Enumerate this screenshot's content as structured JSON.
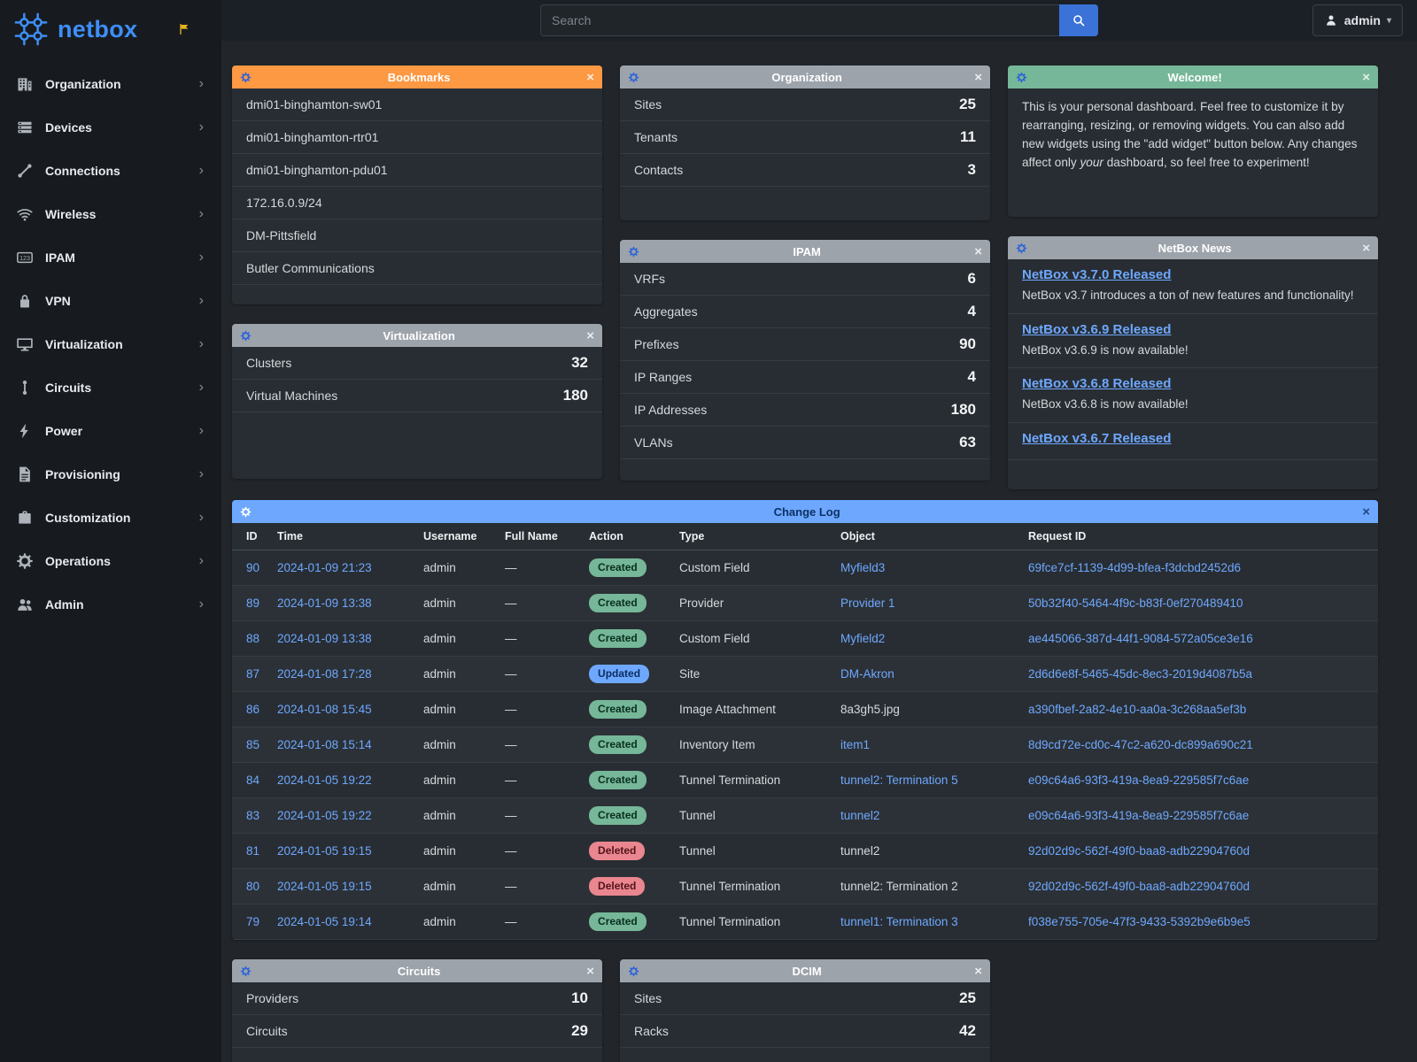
{
  "brand": {
    "name": "netbox"
  },
  "topbar": {
    "search_placeholder": "Search",
    "user_label": "admin"
  },
  "glyphs": {
    "close": "×",
    "chevron": "›",
    "caret": "▾"
  },
  "colors": {
    "link": "#6ea8fe",
    "sidebar_bg": "#171b1f",
    "topbar_bg": "#1b2026",
    "page_bg": "#22262b",
    "card_bg": "#282d33",
    "brand_blue": "#3e8ef7",
    "search_button": "#3a72d8",
    "pin_yellow": "#e8b51e"
  },
  "badges": {
    "Created": {
      "bg": "#75b798",
      "text": "#0a2e1f"
    },
    "Updated": {
      "bg": "#6ea8fe",
      "text": "#0a2e63"
    },
    "Deleted": {
      "bg": "#ea868f",
      "text": "#53141b"
    }
  },
  "sidebar": {
    "items": [
      {
        "label": "Organization",
        "icon": "organization-icon"
      },
      {
        "label": "Devices",
        "icon": "devices-icon"
      },
      {
        "label": "Connections",
        "icon": "connections-icon"
      },
      {
        "label": "Wireless",
        "icon": "wireless-icon"
      },
      {
        "label": "IPAM",
        "icon": "ipam-icon"
      },
      {
        "label": "VPN",
        "icon": "vpn-icon"
      },
      {
        "label": "Virtualization",
        "icon": "virtualization-icon"
      },
      {
        "label": "Circuits",
        "icon": "circuits-icon"
      },
      {
        "label": "Power",
        "icon": "power-icon"
      },
      {
        "label": "Provisioning",
        "icon": "provisioning-icon"
      },
      {
        "label": "Customization",
        "icon": "customization-icon"
      },
      {
        "label": "Operations",
        "icon": "operations-icon"
      },
      {
        "label": "Admin",
        "icon": "admin-icon"
      }
    ]
  },
  "widgets": {
    "bookmarks": {
      "title": "Bookmarks",
      "header_bg": "#fd9843",
      "header_text": "#ffffff",
      "gear_color": "#2d63d8",
      "items": [
        "dmi01-binghamton-sw01",
        "dmi01-binghamton-rtr01",
        "dmi01-binghamton-pdu01",
        "172.16.0.9/24",
        "DM-Pittsfield",
        "Butler Communications"
      ]
    },
    "organization": {
      "title": "Organization",
      "header_bg": "#9ca3ab",
      "header_text": "#ffffff",
      "gear_color": "#2d63d8",
      "stats": [
        {
          "label": "Sites",
          "value": "25"
        },
        {
          "label": "Tenants",
          "value": "11"
        },
        {
          "label": "Contacts",
          "value": "3"
        }
      ]
    },
    "welcome": {
      "title": "Welcome!",
      "header_bg": "#75b798",
      "header_text": "#ffffff",
      "gear_color": "#2d63d8",
      "text_1": "This is your personal dashboard. Feel free to customize it by rearranging, resizing, or removing widgets. You can also add new widgets using the \"add widget\" button below. Any changes affect only ",
      "text_em": "your",
      "text_2": " dashboard, so feel free to experiment!"
    },
    "ipam": {
      "title": "IPAM",
      "header_bg": "#9ca3ab",
      "header_text": "#ffffff",
      "gear_color": "#2d63d8",
      "stats": [
        {
          "label": "VRFs",
          "value": "6"
        },
        {
          "label": "Aggregates",
          "value": "4"
        },
        {
          "label": "Prefixes",
          "value": "90"
        },
        {
          "label": "IP Ranges",
          "value": "4"
        },
        {
          "label": "IP Addresses",
          "value": "180"
        },
        {
          "label": "VLANs",
          "value": "63"
        }
      ]
    },
    "news": {
      "title": "NetBox News",
      "header_bg": "#9ca3ab",
      "header_text": "#ffffff",
      "gear_color": "#2d63d8",
      "items": [
        {
          "headline": "NetBox v3.7.0 Released",
          "summary": "NetBox v3.7 introduces a ton of new features and functionality!"
        },
        {
          "headline": "NetBox v3.6.9 Released",
          "summary": "NetBox v3.6.9 is now available!"
        },
        {
          "headline": "NetBox v3.6.8 Released",
          "summary": "NetBox v3.6.8 is now available!"
        },
        {
          "headline": "NetBox v3.6.7 Released",
          "summary": ""
        }
      ]
    },
    "virtualization": {
      "title": "Virtualization",
      "header_bg": "#9ca3ab",
      "header_text": "#ffffff",
      "gear_color": "#2d63d8",
      "stats": [
        {
          "label": "Clusters",
          "value": "32"
        },
        {
          "label": "Virtual Machines",
          "value": "180"
        }
      ]
    },
    "changelog": {
      "title": "Change Log",
      "header_bg": "#6ea8fe",
      "header_text": "#0d3166",
      "gear_color": "#ffffff",
      "columns": [
        "ID",
        "Time",
        "Username",
        "Full Name",
        "Action",
        "Type",
        "Object",
        "Request ID"
      ],
      "rows": [
        {
          "id": "90",
          "time": "2024-01-09 21:23",
          "username": "admin",
          "full_name": "—",
          "action": "Created",
          "type": "Custom Field",
          "object": "Myfield3",
          "object_link": true,
          "request_id": "69fce7cf-1139-4d99-bfea-f3dcbd2452d6"
        },
        {
          "id": "89",
          "time": "2024-01-09 13:38",
          "username": "admin",
          "full_name": "—",
          "action": "Created",
          "type": "Provider",
          "object": "Provider 1",
          "object_link": true,
          "request_id": "50b32f40-5464-4f9c-b83f-0ef270489410"
        },
        {
          "id": "88",
          "time": "2024-01-09 13:38",
          "username": "admin",
          "full_name": "—",
          "action": "Created",
          "type": "Custom Field",
          "object": "Myfield2",
          "object_link": true,
          "request_id": "ae445066-387d-44f1-9084-572a05ce3e16"
        },
        {
          "id": "87",
          "time": "2024-01-08 17:28",
          "username": "admin",
          "full_name": "—",
          "action": "Updated",
          "type": "Site",
          "object": "DM-Akron",
          "object_link": true,
          "request_id": "2d6d6e8f-5465-45dc-8ec3-2019d4087b5a"
        },
        {
          "id": "86",
          "time": "2024-01-08 15:45",
          "username": "admin",
          "full_name": "—",
          "action": "Created",
          "type": "Image Attachment",
          "object": "8a3gh5.jpg",
          "object_link": false,
          "request_id": "a390fbef-2a82-4e10-aa0a-3c268aa5ef3b"
        },
        {
          "id": "85",
          "time": "2024-01-08 15:14",
          "username": "admin",
          "full_name": "—",
          "action": "Created",
          "type": "Inventory Item",
          "object": "item1",
          "object_link": true,
          "request_id": "8d9cd72e-cd0c-47c2-a620-dc899a690c21"
        },
        {
          "id": "84",
          "time": "2024-01-05 19:22",
          "username": "admin",
          "full_name": "—",
          "action": "Created",
          "type": "Tunnel Termination",
          "object": "tunnel2: Termination 5",
          "object_link": true,
          "request_id": "e09c64a6-93f3-419a-8ea9-229585f7c6ae"
        },
        {
          "id": "83",
          "time": "2024-01-05 19:22",
          "username": "admin",
          "full_name": "—",
          "action": "Created",
          "type": "Tunnel",
          "object": "tunnel2",
          "object_link": true,
          "request_id": "e09c64a6-93f3-419a-8ea9-229585f7c6ae"
        },
        {
          "id": "81",
          "time": "2024-01-05 19:15",
          "username": "admin",
          "full_name": "—",
          "action": "Deleted",
          "type": "Tunnel",
          "object": "tunnel2",
          "object_link": false,
          "request_id": "92d02d9c-562f-49f0-baa8-adb22904760d"
        },
        {
          "id": "80",
          "time": "2024-01-05 19:15",
          "username": "admin",
          "full_name": "—",
          "action": "Deleted",
          "type": "Tunnel Termination",
          "object": "tunnel2: Termination 2",
          "object_link": false,
          "request_id": "92d02d9c-562f-49f0-baa8-adb22904760d"
        },
        {
          "id": "79",
          "time": "2024-01-05 19:14",
          "username": "admin",
          "full_name": "—",
          "action": "Created",
          "type": "Tunnel Termination",
          "object": "tunnel1: Termination 3",
          "object_link": true,
          "request_id": "f038e755-705e-47f3-9433-5392b9e6b9e5"
        }
      ]
    },
    "circuits": {
      "title": "Circuits",
      "header_bg": "#9ca3ab",
      "header_text": "#ffffff",
      "gear_color": "#2d63d8",
      "stats": [
        {
          "label": "Providers",
          "value": "10"
        },
        {
          "label": "Circuits",
          "value": "29"
        }
      ]
    },
    "dcim": {
      "title": "DCIM",
      "header_bg": "#9ca3ab",
      "header_text": "#ffffff",
      "gear_color": "#2d63d8",
      "stats": [
        {
          "label": "Sites",
          "value": "25"
        },
        {
          "label": "Racks",
          "value": "42"
        }
      ]
    }
  }
}
